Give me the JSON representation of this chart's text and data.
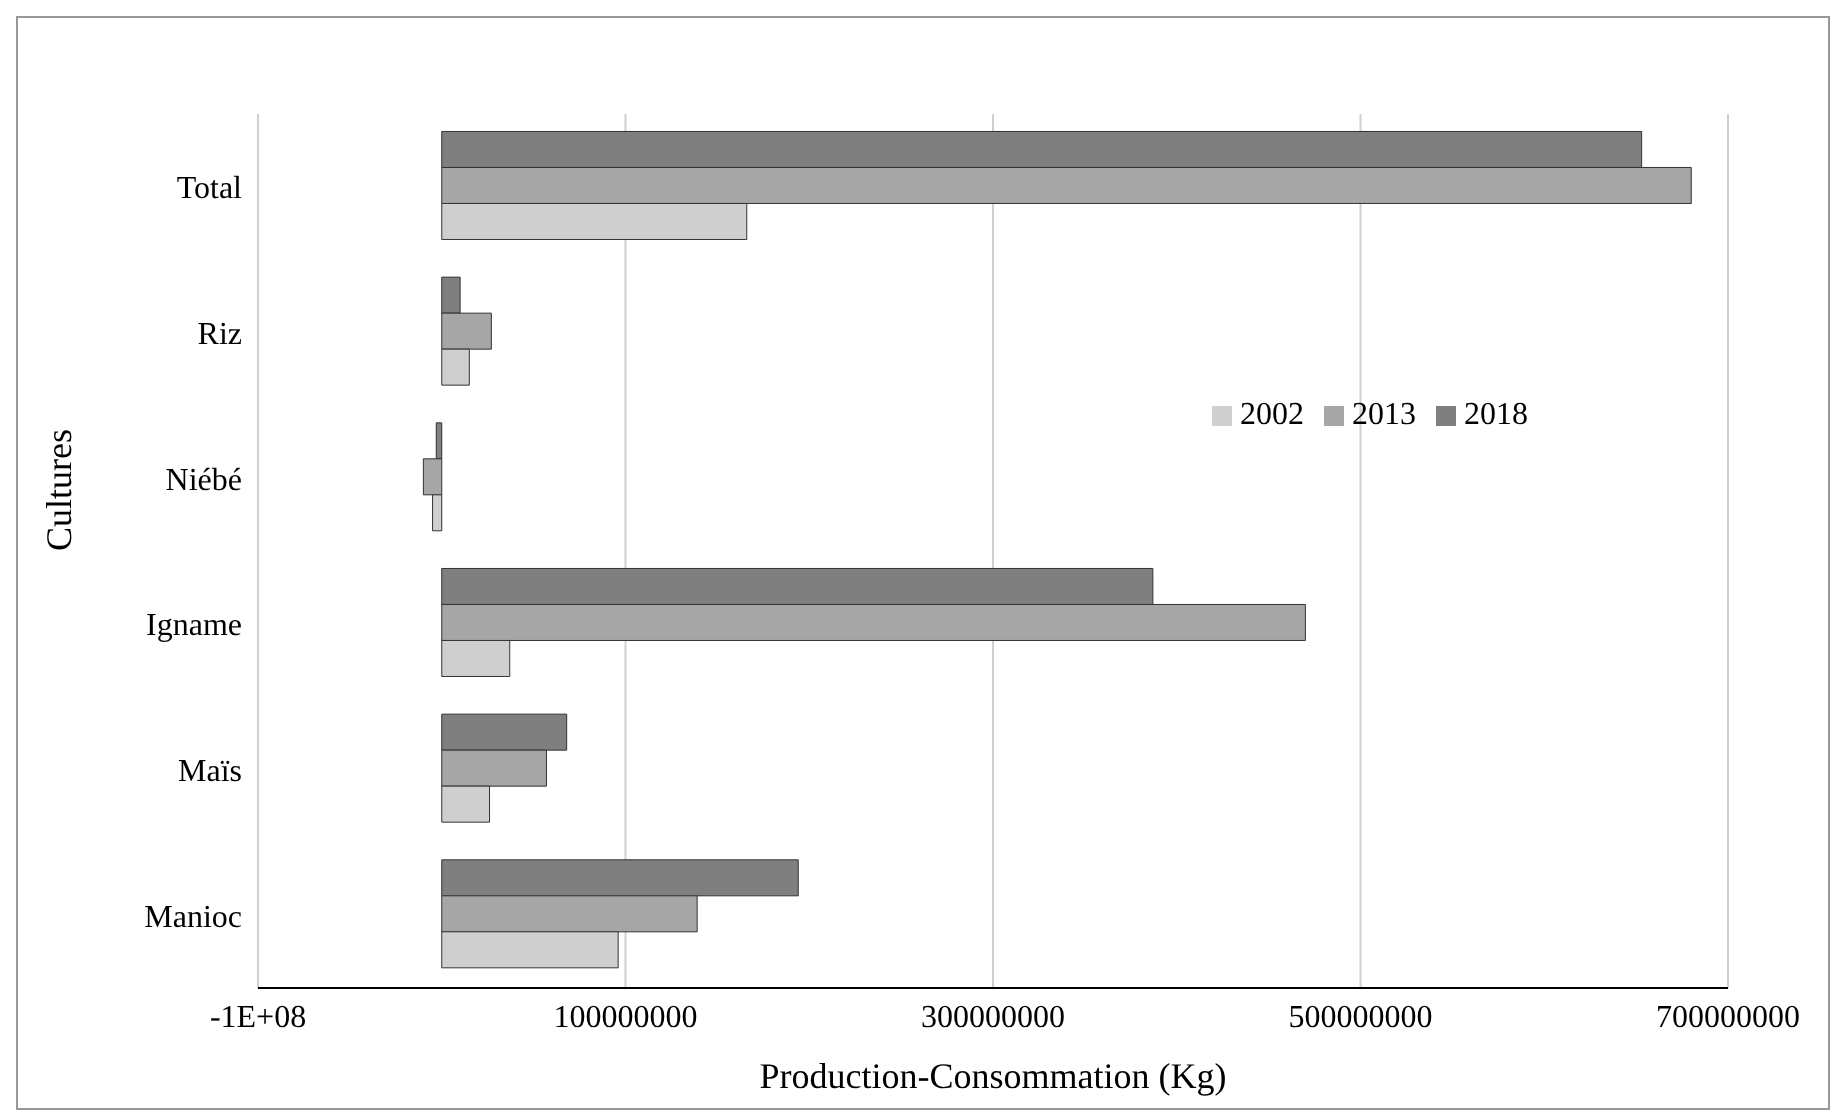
{
  "chart_data": {
    "type": "bar",
    "orientation": "horizontal",
    "xlabel": "Production-Consommation (Kg)",
    "ylabel": "Cultures",
    "categories": [
      "Total",
      "Riz",
      "Niébé",
      "Igname",
      "Maïs",
      "Manioc"
    ],
    "series": [
      {
        "name": "2018",
        "color": "#7f7f7f",
        "values": [
          653000000,
          10000000,
          -3000000,
          387000000,
          68000000,
          194000000
        ]
      },
      {
        "name": "2013",
        "color": "#a6a6a6",
        "values": [
          680000000,
          27000000,
          -10000000,
          470000000,
          57000000,
          139000000
        ]
      },
      {
        "name": "2002",
        "color": "#cfcfcf",
        "values": [
          166000000,
          15000000,
          -5000000,
          37000000,
          26000000,
          96000000
        ]
      }
    ],
    "xlim": [
      -100000000,
      700000000
    ],
    "xticks": [
      {
        "value": -100000000,
        "label": "-1E+08"
      },
      100000000,
      300000000,
      500000000,
      700000000
    ],
    "grid": "x",
    "legend": "top right"
  }
}
